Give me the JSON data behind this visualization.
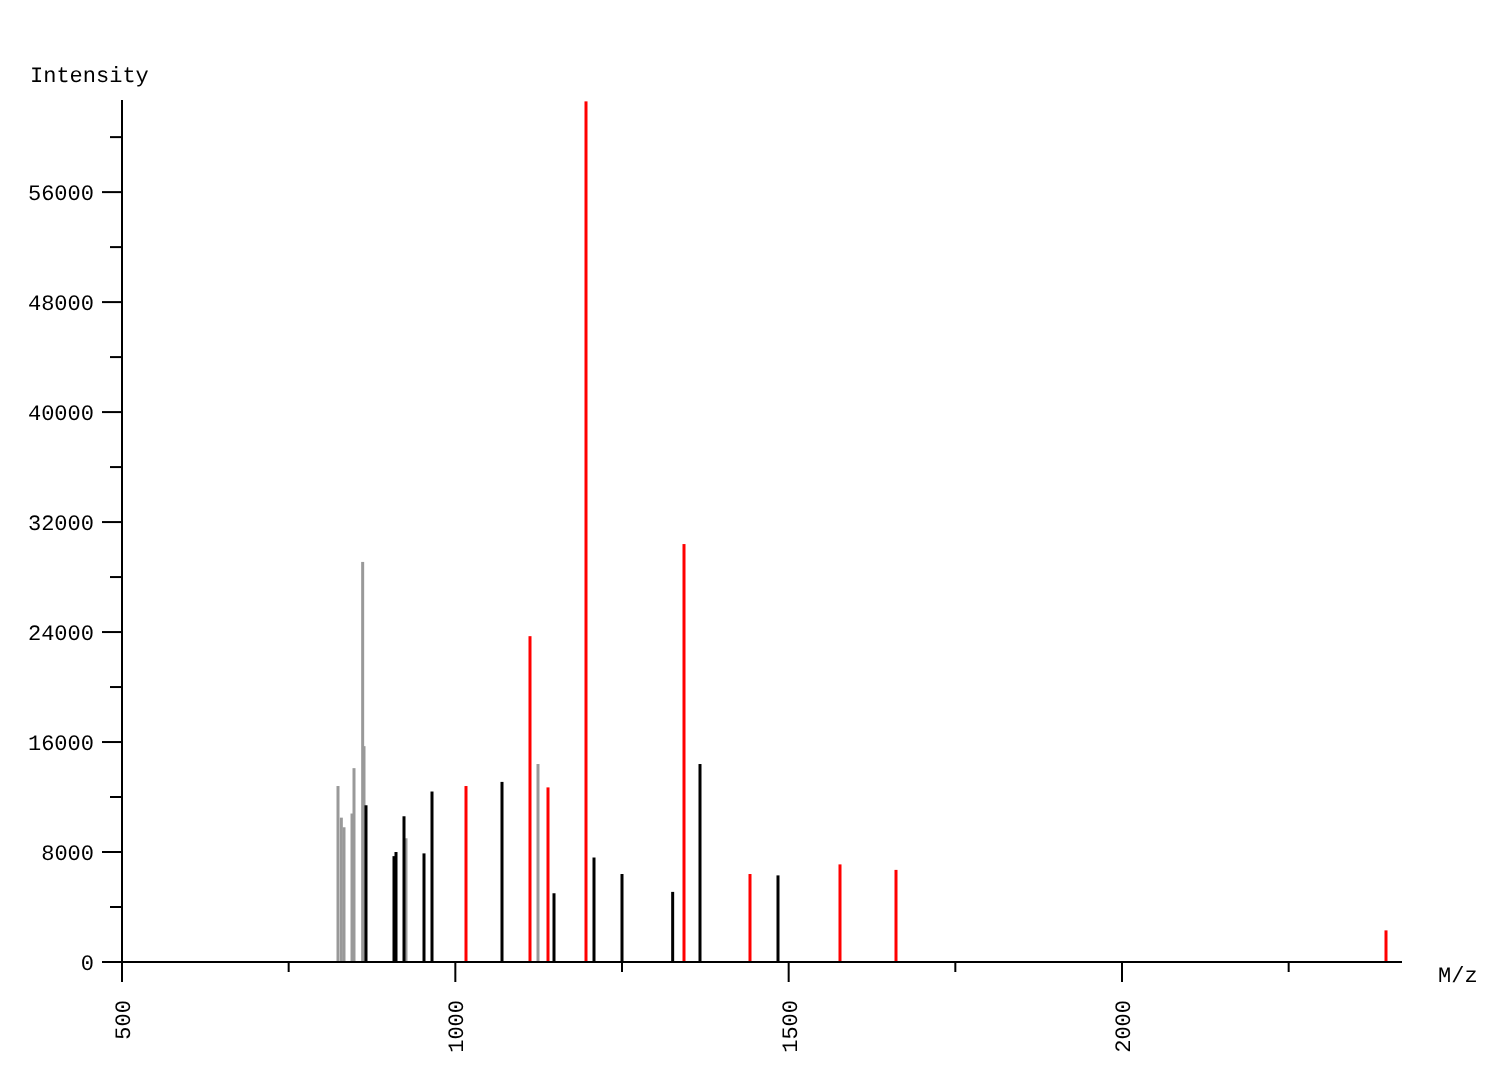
{
  "chart_data": {
    "type": "bar",
    "xlabel": "M/z",
    "ylabel": "Intensity",
    "xlim": [
      500,
      2420
    ],
    "ylim": [
      0,
      62700
    ],
    "xticks": [
      500,
      {
        "value": 750,
        "label": null
      },
      1000,
      {
        "value": 1250,
        "label": null
      },
      1500,
      {
        "value": 1750,
        "label": null
      },
      2000,
      {
        "value": 2250,
        "label": null
      }
    ],
    "yticks": [
      0,
      {
        "value": 4000,
        "label": null
      },
      8000,
      {
        "value": 12000,
        "label": null
      },
      16000,
      {
        "value": 20000,
        "label": null
      },
      24000,
      {
        "value": 28000,
        "label": null
      },
      32000,
      {
        "value": 36000,
        "label": null
      },
      40000,
      {
        "value": 44000,
        "label": null
      },
      48000,
      {
        "value": 52000,
        "label": null
      },
      56000,
      {
        "value": 60000,
        "label": null
      }
    ],
    "grid": false,
    "series": [
      {
        "color": "#999999",
        "x": [
          824,
          829,
          833,
          845,
          848,
          861,
          863,
          926,
          1124
        ],
        "values": [
          12800,
          10500,
          9800,
          10800,
          14100,
          29100,
          15700,
          9000,
          14400
        ]
      },
      {
        "color": "#000000",
        "x": [
          866,
          908,
          911,
          923,
          953,
          965,
          1070,
          1148,
          1208,
          1250,
          1326,
          1367,
          1484
        ],
        "values": [
          11400,
          7700,
          8000,
          10600,
          7900,
          12400,
          13100,
          5000,
          7600,
          6400,
          5100,
          14400,
          6300
        ]
      },
      {
        "color": "#ff0000",
        "x": [
          1016,
          1112,
          1139,
          1196,
          1343,
          1442,
          1577,
          1661,
          2396
        ],
        "values": [
          12800,
          23700,
          12700,
          62600,
          30400,
          6400,
          7100,
          6700,
          2300
        ]
      }
    ]
  }
}
